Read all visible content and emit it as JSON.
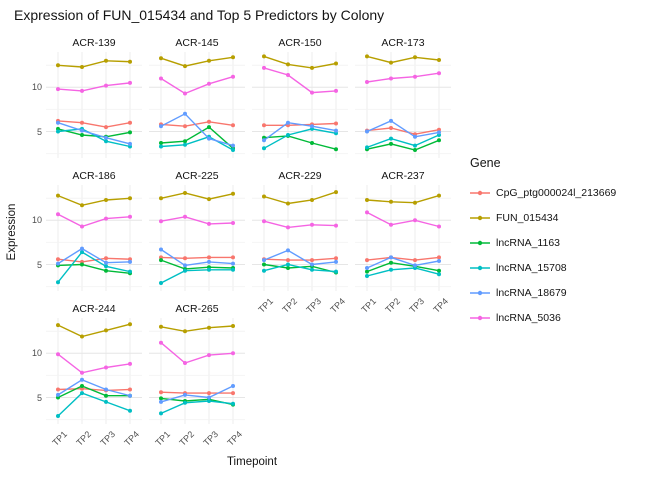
{
  "title": "Expression of FUN_015434 and Top 5 Predictors by Colony",
  "legend": {
    "title": "Gene",
    "entries": [
      {
        "label": "CpG_ptg000024l_213669",
        "color": "#F8766D"
      },
      {
        "label": "FUN_015434",
        "color": "#B79F00"
      },
      {
        "label": "lncRNA_1163",
        "color": "#00BA38"
      },
      {
        "label": "lncRNA_15708",
        "color": "#00BFC4"
      },
      {
        "label": "lncRNA_18679",
        "color": "#619CFF"
      },
      {
        "label": "lncRNA_5036",
        "color": "#F564E3"
      }
    ]
  },
  "chart_data": {
    "type": "line",
    "title": "Expression of FUN_015434 and Top 5 Predictors by Colony",
    "xlabel": "Timepoint",
    "ylabel": "Expression",
    "x": [
      "TP1",
      "TP2",
      "TP3",
      "TP4"
    ],
    "ylim": [
      2,
      14
    ],
    "yticks": [
      5,
      10
    ],
    "grid": true,
    "legend_position": "right",
    "series_names": [
      "CpG_ptg000024l_213669",
      "FUN_015434",
      "lncRNA_1163",
      "lncRNA_15708",
      "lncRNA_18679",
      "lncRNA_5036"
    ],
    "series_colors": [
      "#F8766D",
      "#B79F00",
      "#00BA38",
      "#00BFC4",
      "#619CFF",
      "#F564E3"
    ],
    "facets": [
      {
        "name": "ACR-139",
        "values": [
          [
            6.2,
            6.0,
            5.5,
            6.0
          ],
          [
            12.5,
            12.3,
            13.0,
            12.9
          ],
          [
            5.3,
            4.6,
            4.4,
            4.9
          ],
          [
            5.0,
            5.3,
            3.9,
            3.3
          ],
          [
            6.0,
            5.1,
            4.3,
            3.6
          ],
          [
            9.8,
            9.6,
            10.2,
            10.5
          ]
        ]
      },
      {
        "name": "ACR-145",
        "values": [
          [
            5.8,
            5.6,
            6.1,
            5.7
          ],
          [
            13.3,
            12.4,
            13.0,
            13.4
          ],
          [
            3.7,
            3.9,
            5.5,
            3.1
          ],
          [
            3.3,
            3.5,
            4.4,
            2.9
          ],
          [
            5.6,
            7.0,
            4.2,
            3.4
          ],
          [
            11.0,
            9.3,
            10.4,
            11.2
          ]
        ]
      },
      {
        "name": "ACR-150",
        "values": [
          [
            5.7,
            5.7,
            5.8,
            5.9
          ],
          [
            13.5,
            12.6,
            12.2,
            12.7
          ],
          [
            4.3,
            4.5,
            3.7,
            3.0
          ],
          [
            3.1,
            4.6,
            5.3,
            4.8
          ],
          [
            4.0,
            6.0,
            5.6,
            5.1
          ],
          [
            12.2,
            11.4,
            9.4,
            9.6
          ]
        ]
      },
      {
        "name": "ACR-173",
        "values": [
          [
            5.1,
            5.4,
            4.7,
            5.2
          ],
          [
            13.5,
            12.8,
            13.4,
            13.1
          ],
          [
            3.0,
            3.6,
            2.9,
            4.0
          ],
          [
            3.2,
            4.2,
            3.4,
            4.6
          ],
          [
            5.0,
            6.2,
            4.4,
            4.9
          ],
          [
            10.6,
            11.0,
            11.2,
            11.6
          ]
        ]
      },
      {
        "name": "ACR-186",
        "values": [
          [
            5.6,
            5.3,
            5.7,
            5.6
          ],
          [
            12.8,
            11.7,
            12.3,
            12.5
          ],
          [
            4.9,
            5.0,
            4.3,
            4.0
          ],
          [
            3.0,
            6.4,
            4.8,
            4.2
          ],
          [
            5.1,
            6.8,
            5.2,
            5.3
          ],
          [
            10.7,
            9.3,
            10.2,
            10.4
          ]
        ]
      },
      {
        "name": "ACR-225",
        "values": [
          [
            5.8,
            5.7,
            5.8,
            5.8
          ],
          [
            12.5,
            13.1,
            12.4,
            13.0
          ],
          [
            5.5,
            4.5,
            4.7,
            4.6
          ],
          [
            2.9,
            4.3,
            4.4,
            4.4
          ],
          [
            6.7,
            4.9,
            5.3,
            5.1
          ],
          [
            9.9,
            10.4,
            9.6,
            9.7
          ]
        ]
      },
      {
        "name": "ACR-229",
        "values": [
          [
            5.6,
            5.5,
            5.5,
            5.7
          ],
          [
            12.7,
            11.9,
            12.3,
            13.2
          ],
          [
            5.0,
            4.6,
            4.8,
            4.1
          ],
          [
            4.3,
            5.0,
            4.4,
            4.2
          ],
          [
            5.5,
            6.6,
            5.0,
            5.3
          ],
          [
            9.9,
            9.2,
            9.5,
            9.4
          ]
        ]
      },
      {
        "name": "ACR-237",
        "values": [
          [
            5.5,
            5.8,
            5.5,
            5.8
          ],
          [
            12.3,
            12.1,
            12.0,
            12.8
          ],
          [
            4.2,
            5.2,
            4.8,
            4.3
          ],
          [
            3.7,
            4.4,
            4.6,
            3.9
          ],
          [
            4.6,
            5.8,
            4.9,
            5.4
          ],
          [
            10.9,
            9.5,
            10.0,
            9.3
          ]
        ]
      },
      {
        "name": "ACR-244",
        "values": [
          [
            5.9,
            6.0,
            5.8,
            5.9
          ],
          [
            13.2,
            11.9,
            12.6,
            13.3
          ],
          [
            5.0,
            6.3,
            5.2,
            5.2
          ],
          [
            2.9,
            5.5,
            4.5,
            3.5
          ],
          [
            5.3,
            7.0,
            5.9,
            5.2
          ],
          [
            9.9,
            7.8,
            8.4,
            8.8
          ]
        ]
      },
      {
        "name": "ACR-265",
        "values": [
          [
            5.6,
            5.5,
            5.5,
            5.5
          ],
          [
            13.0,
            12.5,
            12.9,
            13.1
          ],
          [
            4.9,
            4.6,
            4.8,
            4.2
          ],
          [
            3.2,
            4.4,
            4.6,
            4.3
          ],
          [
            4.5,
            5.3,
            5.0,
            6.3
          ],
          [
            11.2,
            8.9,
            9.8,
            10.0
          ]
        ]
      }
    ]
  }
}
